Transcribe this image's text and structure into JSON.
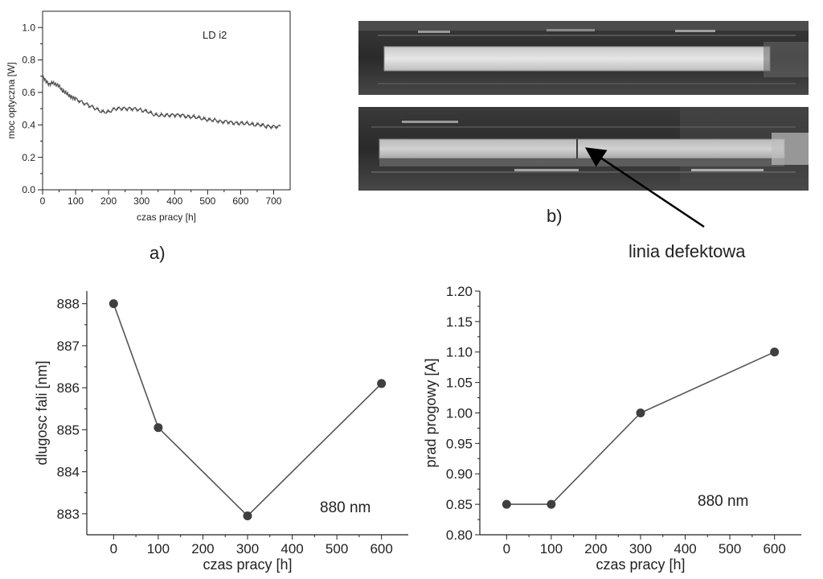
{
  "panel_labels": {
    "a": "a)",
    "b": "b)"
  },
  "photo_annotation": "linia defektowa",
  "colors": {
    "line": "#555555",
    "marker": "#3f3f3f",
    "axis": "#222222"
  },
  "chart_data": [
    {
      "id": "optical-power",
      "type": "line",
      "title": "",
      "annotation": "LD i2",
      "xlabel": "czas pracy  [h]",
      "ylabel": "moc optyczna  [W]",
      "xlim": [
        0,
        750
      ],
      "ylim": [
        0,
        1.1
      ],
      "x_ticks": [
        0,
        100,
        200,
        300,
        400,
        500,
        600,
        700
      ],
      "y_ticks": [
        0.0,
        0.2,
        0.4,
        0.6,
        0.8,
        1.0
      ],
      "y_tick_labels": [
        "0.0",
        "0.2",
        "0.4",
        "0.6",
        "0.8",
        "1.0"
      ],
      "series": [
        {
          "x": [
            0,
            10,
            20,
            30,
            40,
            50,
            60,
            70,
            80,
            90,
            100,
            120,
            140,
            160,
            180,
            200,
            220,
            240,
            260,
            280,
            300,
            320,
            340,
            360,
            380,
            400,
            420,
            440,
            460,
            480,
            500,
            520,
            540,
            560,
            580,
            600,
            620,
            640,
            660,
            680,
            700,
            720
          ],
          "y": [
            0.7,
            0.67,
            0.65,
            0.66,
            0.65,
            0.64,
            0.61,
            0.6,
            0.58,
            0.57,
            0.56,
            0.54,
            0.52,
            0.5,
            0.48,
            0.48,
            0.5,
            0.5,
            0.5,
            0.5,
            0.49,
            0.48,
            0.46,
            0.46,
            0.46,
            0.46,
            0.46,
            0.45,
            0.45,
            0.44,
            0.43,
            0.43,
            0.42,
            0.42,
            0.41,
            0.41,
            0.41,
            0.4,
            0.4,
            0.39,
            0.39,
            0.39
          ]
        }
      ]
    },
    {
      "id": "wavelength",
      "type": "line",
      "title": "",
      "annotation": "880 nm",
      "xlabel": "czas pracy  [h]",
      "ylabel": "dlugosc fali  [nm]",
      "xlim": [
        -60,
        660
      ],
      "ylim": [
        882.5,
        888.3
      ],
      "x_ticks": [
        0,
        100,
        200,
        300,
        400,
        500,
        600
      ],
      "y_ticks": [
        883,
        884,
        885,
        886,
        887,
        888
      ],
      "y_tick_labels": [
        "883",
        "884",
        "885",
        "886",
        "887",
        "888"
      ],
      "series": [
        {
          "x": [
            0,
            100,
            300,
            600
          ],
          "y": [
            888.0,
            885.05,
            882.95,
            886.1
          ]
        }
      ]
    },
    {
      "id": "threshold-current",
      "type": "line",
      "title": "",
      "annotation": "880 nm",
      "xlabel": "czas pracy  [h]",
      "ylabel": "prad progowy  [A]",
      "xlim": [
        -60,
        660
      ],
      "ylim": [
        0.8,
        1.2
      ],
      "x_ticks": [
        0,
        100,
        200,
        300,
        400,
        500,
        600
      ],
      "y_ticks": [
        0.8,
        0.85,
        0.9,
        0.95,
        1.0,
        1.05,
        1.1,
        1.15,
        1.2
      ],
      "y_tick_labels": [
        "0.80",
        "0.85",
        "0.90",
        "0.95",
        "1.00",
        "1.05",
        "1.10",
        "1.15",
        "1.20"
      ],
      "series": [
        {
          "x": [
            0,
            100,
            300,
            600
          ],
          "y": [
            0.85,
            0.85,
            1.0,
            1.1
          ]
        }
      ]
    }
  ]
}
